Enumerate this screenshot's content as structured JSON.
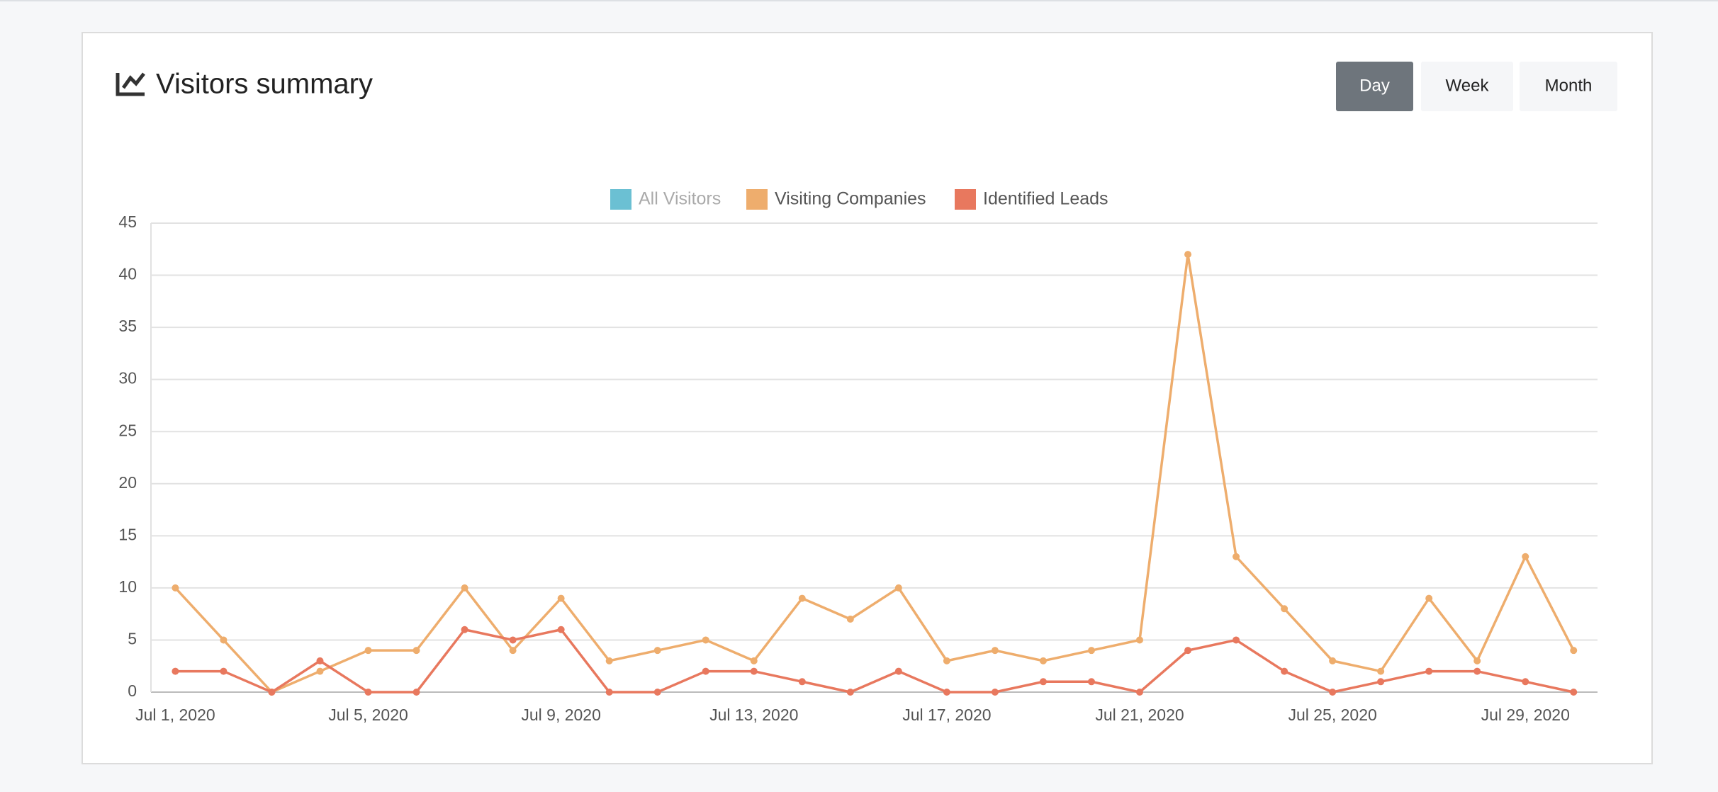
{
  "header": {
    "title": "Visitors summary",
    "buttons": [
      {
        "label": "Day",
        "active": true
      },
      {
        "label": "Week",
        "active": false
      },
      {
        "label": "Month",
        "active": false
      }
    ]
  },
  "chart_data": {
    "type": "line",
    "categories": [
      "Jul 1, 2020",
      null,
      null,
      null,
      "Jul 5, 2020",
      null,
      null,
      null,
      "Jul 9, 2020",
      null,
      null,
      null,
      "Jul 13, 2020",
      null,
      null,
      null,
      "Jul 17, 2020",
      null,
      null,
      null,
      "Jul 21, 2020",
      null,
      null,
      null,
      "Jul 25, 2020",
      null,
      null,
      null,
      "Jul 29, 2020",
      null
    ],
    "series": [
      {
        "name": "All Visitors",
        "color": "#6bc0d3",
        "hidden": true
      },
      {
        "name": "Visiting Companies",
        "color": "#eead6d",
        "values": [
          10,
          5,
          0,
          2,
          4,
          4,
          10,
          4,
          9,
          3,
          4,
          5,
          3,
          9,
          7,
          10,
          3,
          4,
          3,
          4,
          5,
          42,
          13,
          8,
          3,
          2,
          9,
          3,
          13,
          4
        ]
      },
      {
        "name": "Identified Leads",
        "color": "#e8785e",
        "values": [
          2,
          2,
          0,
          3,
          0,
          0,
          6,
          5,
          6,
          0,
          0,
          2,
          2,
          1,
          0,
          2,
          0,
          0,
          1,
          1,
          0,
          4,
          5,
          2,
          0,
          1,
          2,
          2,
          1,
          0
        ]
      }
    ],
    "ylim": [
      0,
      45
    ],
    "yticks": [
      0,
      5,
      10,
      15,
      20,
      25,
      30,
      35,
      40,
      45
    ],
    "grid": true,
    "legend": "top"
  }
}
